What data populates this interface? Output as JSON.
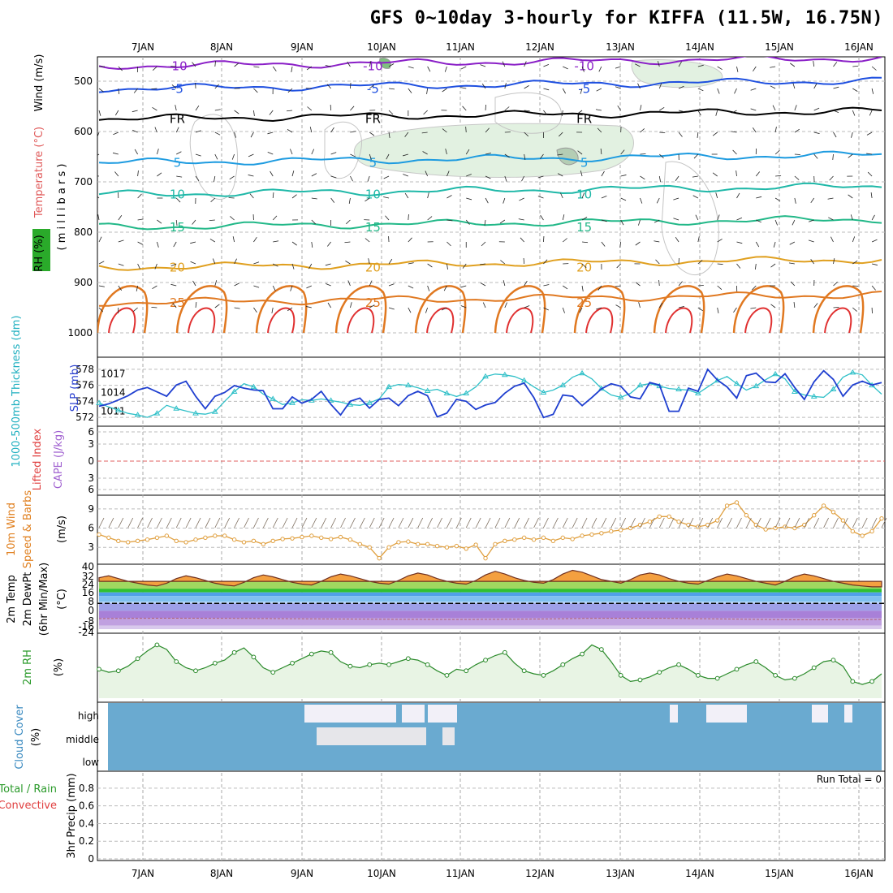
{
  "title": "GFS 0~10day 3-hourly for KIFFA (11.5W, 16.75N)",
  "day_labels": [
    "7JAN",
    "8JAN",
    "9JAN",
    "10JAN",
    "11JAN",
    "12JAN",
    "13JAN",
    "14JAN",
    "15JAN",
    "16JAN"
  ],
  "panels": {
    "upper": {
      "labels": {
        "rh": "RH (%)",
        "temp": "Temperature (°C)",
        "wind": "Wind (m/s)",
        "units": "( m i l l i b a r s )"
      },
      "pressure_ticks": [
        500,
        600,
        700,
        800,
        900,
        1000
      ],
      "isotherms": [
        {
          "name": "-10",
          "p": 470,
          "color": "#8a1fc7"
        },
        {
          "name": "-5",
          "p": 515,
          "color": "#1f50e0"
        },
        {
          "name": "FR",
          "p": 575,
          "color": "#000000"
        },
        {
          "name": "5",
          "p": 662,
          "color": "#1d9be0"
        },
        {
          "name": "10",
          "p": 725,
          "color": "#1fb8a8"
        },
        {
          "name": "15",
          "p": 790,
          "color": "#22b888"
        },
        {
          "name": "20",
          "p": 870,
          "color": "#e0a020"
        },
        {
          "name": "25",
          "p": 940,
          "color": "#e07820"
        }
      ]
    },
    "thickness": {
      "label": "1000-500mb Thickness (dm)",
      "slp_label": "SLP (mb)",
      "left_ticks": [
        572,
        574,
        576,
        578
      ],
      "right_ticks": [
        1011,
        1014,
        1017
      ]
    },
    "cape": {
      "labels": {
        "li": "Lifted Index",
        "cape": "CAPE (J/kg)"
      },
      "ticks": [
        "6",
        "3",
        "0",
        "3",
        "6"
      ]
    },
    "wind10m": {
      "labels": {
        "main": "10m Wind",
        "sub": "Speed & Barbs",
        "units": "(m/s)"
      },
      "ticks": [
        3,
        6,
        9
      ]
    },
    "temp2m": {
      "labels": {
        "main": "2m Temp",
        "sub": "2m DewPt",
        "sub2": "(6hr Min/Max)",
        "units": "(°C)"
      },
      "ticks": [
        "40",
        "32",
        "24",
        "16",
        "8",
        "0",
        "-8",
        "-24",
        "-16"
      ]
    },
    "rh2m": {
      "labels": {
        "main": "2m RH",
        "units": "(%)"
      }
    },
    "cloud": {
      "labels": {
        "main": "Cloud Cover",
        "units": "(%)"
      },
      "levels": [
        "high",
        "middle",
        "low"
      ]
    },
    "precip": {
      "labels": {
        "total": "Total / Rain",
        "conv": "Convective",
        "units": "3hr Precip (mm)"
      },
      "ticks": [
        "0",
        "0.2",
        "0.4",
        "0.6",
        "0.8"
      ],
      "run_total": "Run Total = 0"
    }
  },
  "chart_data": [
    {
      "type": "line",
      "title": "1000-500mb Thickness (dm)",
      "series": [
        {
          "name": "1000-500mb Thickness (dm)",
          "color": "#30c0c8",
          "values": [
            573.8,
            573.3,
            572.9,
            572.5,
            572.3,
            572.0,
            572.5,
            573.5,
            573.1,
            572.8,
            572.5,
            572.4,
            572.7,
            574.0,
            575.2,
            576.2,
            575.8,
            574.9,
            574.3,
            573.6,
            573.8,
            574.2,
            574.1,
            574.3,
            574.1,
            573.9,
            573.6,
            573.5,
            573.8,
            574.3,
            575.8,
            576.1,
            576.0,
            575.7,
            575.3,
            575.5,
            575.0,
            574.6,
            575.0,
            575.8,
            577.1,
            577.4,
            577.3,
            577.1,
            576.6,
            575.8,
            575.1,
            575.4,
            576.0,
            577.0,
            577.5,
            576.8,
            575.6,
            574.8,
            574.5,
            575.0,
            576.0,
            576.2,
            575.9,
            575.6,
            575.5,
            575.4,
            575.0,
            575.8,
            576.6,
            577.1,
            576.2,
            575.4,
            575.9,
            576.7,
            577.4,
            576.8,
            575.2,
            574.8,
            574.6,
            574.5,
            575.5,
            577.0,
            577.6,
            577.3,
            576.0,
            574.9
          ]
        },
        {
          "name": "SLP (mb)",
          "color": "#1f3fd0",
          "values": [
            1011.8,
            1012.2,
            1012.8,
            1013.5,
            1014.4,
            1014.8,
            1014.1,
            1013.4,
            1015.2,
            1015.8,
            1013.4,
            1011.4,
            1013.4,
            1014.0,
            1015.1,
            1014.7,
            1014.4,
            1014.3,
            1011.4,
            1011.4,
            1013.3,
            1012.3,
            1012.9,
            1014.2,
            1012.1,
            1010.4,
            1012.6,
            1013.1,
            1011.5,
            1012.9,
            1013.1,
            1011.9,
            1013.5,
            1014.2,
            1013.5,
            1010.1,
            1010.7,
            1012.9,
            1012.6,
            1011.3,
            1012.0,
            1012.4,
            1013.9,
            1015.0,
            1015.5,
            1013.2,
            1010.0,
            1010.5,
            1013.6,
            1013.4,
            1011.9,
            1013.2,
            1014.6,
            1015.4,
            1015.0,
            1013.3,
            1013.0,
            1015.6,
            1015.2,
            1011.0,
            1011.0,
            1014.7,
            1014.2,
            1017.7,
            1016.0,
            1014.9,
            1013.1,
            1016.7,
            1017.1,
            1015.7,
            1015.6,
            1017.0,
            1014.8,
            1012.9,
            1015.7,
            1017.5,
            1016.1,
            1013.4,
            1015.2,
            1015.8,
            1015.2,
            1015.6
          ]
        }
      ]
    },
    {
      "type": "line",
      "title": "10m Wind Speed (m/s)",
      "values": [
        5.0,
        4.5,
        4.0,
        3.8,
        4.0,
        4.2,
        4.5,
        4.8,
        4.0,
        3.8,
        4.2,
        4.5,
        4.8,
        4.8,
        4.2,
        3.8,
        4.0,
        3.5,
        4.0,
        4.3,
        4.4,
        4.6,
        4.8,
        4.5,
        4.3,
        4.6,
        4.2,
        3.5,
        3.0,
        1.3,
        3.0,
        3.8,
        3.9,
        3.5,
        3.5,
        3.2,
        3.0,
        3.2,
        2.8,
        3.4,
        1.3,
        3.5,
        4.0,
        4.2,
        4.5,
        4.2,
        4.5,
        4.0,
        4.5,
        4.3,
        4.8,
        5.0,
        5.2,
        5.5,
        5.7,
        6.0,
        6.5,
        7.0,
        7.8,
        7.8,
        7.0,
        6.5,
        6.2,
        6.5,
        7.2,
        9.5,
        10.0,
        8.0,
        6.5,
        5.8,
        6.0,
        6.2,
        6.0,
        6.5,
        8.0,
        9.5,
        8.5,
        7.2,
        5.5,
        4.8,
        5.5,
        7.5
      ]
    },
    {
      "type": "area",
      "title": "2m Temp (°C)",
      "values": [
        28,
        30,
        27,
        24,
        22,
        20,
        19,
        22,
        27,
        30,
        28,
        25,
        22,
        20,
        19,
        23,
        28,
        31,
        29,
        26,
        23,
        21,
        20,
        24,
        29,
        32,
        30,
        27,
        24,
        22,
        21,
        25,
        30,
        33,
        31,
        27,
        24,
        22,
        21,
        25,
        31,
        35,
        32,
        28,
        25,
        23,
        22,
        26,
        32,
        36,
        34,
        30,
        26,
        24,
        22,
        26,
        31,
        33,
        31,
        27,
        24,
        22,
        21,
        25,
        29,
        32,
        30,
        27,
        24,
        22,
        20,
        24,
        29,
        32,
        30,
        27,
        24,
        22,
        20,
        19,
        18,
        18
      ]
    },
    {
      "type": "area",
      "title": "2m RH (%)",
      "values": [
        38,
        34,
        36,
        42,
        52,
        62,
        70,
        64,
        48,
        40,
        36,
        40,
        46,
        50,
        60,
        66,
        54,
        40,
        34,
        40,
        46,
        52,
        58,
        62,
        60,
        48,
        42,
        40,
        44,
        46,
        44,
        48,
        52,
        50,
        44,
        36,
        30,
        38,
        36,
        44,
        50,
        56,
        60,
        46,
        36,
        32,
        30,
        36,
        44,
        52,
        58,
        70,
        64,
        48,
        30,
        22,
        24,
        28,
        34,
        40,
        44,
        38,
        30,
        26,
        26,
        32,
        38,
        44,
        48,
        40,
        30,
        24,
        26,
        32,
        40,
        48,
        50,
        42,
        22,
        18,
        22,
        32
      ]
    },
    {
      "type": "table",
      "title": "Cloud Cover (%)",
      "levels": [
        "high",
        "middle",
        "low"
      ]
    },
    {
      "type": "bar",
      "title": "3hr Precip (mm)",
      "ylim": [
        0,
        1
      ],
      "values": [
        0,
        0,
        0,
        0,
        0,
        0,
        0,
        0,
        0,
        0
      ]
    }
  ]
}
